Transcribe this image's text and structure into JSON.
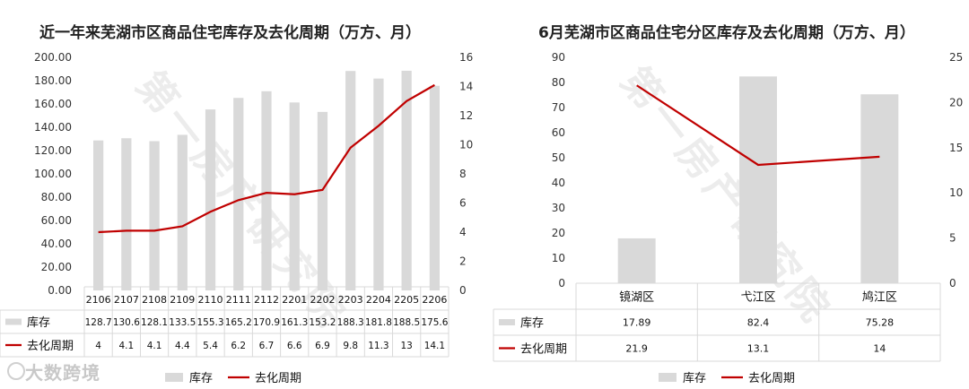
{
  "watermark": "大数跨境",
  "watermark_diag": "第一房产研究院",
  "colors": {
    "bar": "#d9d9d9",
    "line": "#c00000",
    "grid": "#d9d9d9",
    "text": "#333333"
  },
  "chart_data": [
    {
      "type": "bar",
      "title": "近一年来芜湖市区商品住宅库存及去化周期（万方、月）",
      "categories": [
        "2106",
        "2107",
        "2108",
        "2109",
        "2110",
        "2111",
        "2112",
        "2201",
        "2202",
        "2203",
        "2204",
        "2205",
        "2206"
      ],
      "series": [
        {
          "name": "库存",
          "type": "bar",
          "axis": "left",
          "values": [
            128.7,
            130.6,
            128.1,
            133.5,
            155.3,
            165.2,
            170.9,
            161.3,
            153.2,
            188.3,
            181.8,
            188.5,
            175.6
          ],
          "labels": [
            "128.7",
            "130.6",
            "128.1",
            "133.5",
            "155.3",
            "165.2",
            "170.9",
            "161.3",
            "153.2",
            "188.3",
            "181.8",
            "188.5",
            "175.6"
          ]
        },
        {
          "name": "去化周期",
          "type": "line",
          "axis": "right",
          "values": [
            4,
            4.1,
            4.1,
            4.4,
            5.4,
            6.2,
            6.7,
            6.6,
            6.9,
            9.8,
            11.3,
            13,
            14.1
          ],
          "labels": [
            "4",
            "4.1",
            "4.1",
            "4.4",
            "5.4",
            "6.2",
            "6.7",
            "6.6",
            "6.9",
            "9.8",
            "11.3",
            "13",
            "14.1"
          ]
        }
      ],
      "ylim_left": [
        0,
        200
      ],
      "yticks_left": [
        "0.00",
        "20.00",
        "40.00",
        "60.00",
        "80.00",
        "100.00",
        "120.00",
        "140.00",
        "160.00",
        "180.00",
        "200.00"
      ],
      "ylim_right": [
        0,
        16
      ],
      "yticks_right": [
        "0",
        "2",
        "4",
        "6",
        "8",
        "10",
        "12",
        "14",
        "16"
      ],
      "legend": [
        "库存",
        "去化周期"
      ],
      "legend_position": "bottom",
      "grid": false
    },
    {
      "type": "bar",
      "title": "6月芜湖市区商品住宅分区库存及去化周期（万方、月）",
      "categories": [
        "镜湖区",
        "弋江区",
        "鸠江区"
      ],
      "series": [
        {
          "name": "库存",
          "type": "bar",
          "axis": "left",
          "values": [
            17.89,
            82.4,
            75.28
          ],
          "labels": [
            "17.89",
            "82.4",
            "75.28"
          ]
        },
        {
          "name": "去化周期",
          "type": "line",
          "axis": "right",
          "values": [
            21.9,
            13.1,
            14
          ],
          "labels": [
            "21.9",
            "13.1",
            "14"
          ]
        }
      ],
      "ylim_left": [
        0,
        90
      ],
      "yticks_left": [
        "0",
        "10",
        "20",
        "30",
        "40",
        "50",
        "60",
        "70",
        "80",
        "90"
      ],
      "ylim_right": [
        0,
        25
      ],
      "yticks_right": [
        "0",
        "5",
        "10",
        "15",
        "20",
        "25"
      ],
      "legend": [
        "库存",
        "去化周期"
      ],
      "legend_position": "bottom",
      "grid": false
    }
  ]
}
